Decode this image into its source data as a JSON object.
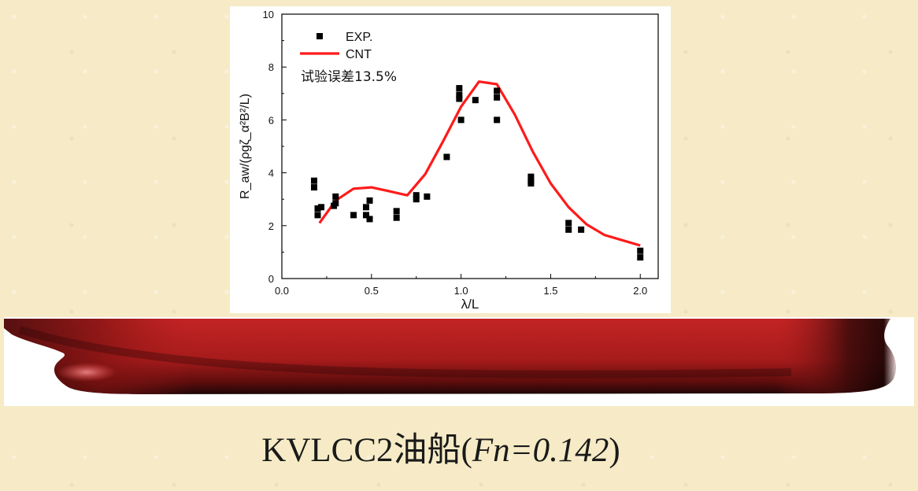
{
  "chart_data": {
    "type": "scatter",
    "title": "",
    "xlabel": "λ/L",
    "ylabel": "R_aw/(ρgζ_α²B²/L)",
    "xlim": [
      0.0,
      2.1
    ],
    "ylim": [
      0,
      10
    ],
    "xticks": [
      "0.0",
      "0.5",
      "1.0",
      "1.5",
      "2.0"
    ],
    "yticks": [
      "0",
      "2",
      "4",
      "6",
      "8",
      "10"
    ],
    "grid": false,
    "legend_position": "top-left",
    "annotation": "试验误差13.5%",
    "series": [
      {
        "name": "EXP.",
        "kind": "scatter",
        "color": "#000000",
        "marker": "square",
        "points": [
          [
            0.18,
            3.7
          ],
          [
            0.18,
            3.45
          ],
          [
            0.2,
            2.65
          ],
          [
            0.2,
            2.4
          ],
          [
            0.22,
            2.7
          ],
          [
            0.29,
            2.75
          ],
          [
            0.3,
            2.85
          ],
          [
            0.3,
            3.1
          ],
          [
            0.4,
            2.4
          ],
          [
            0.47,
            2.7
          ],
          [
            0.47,
            2.4
          ],
          [
            0.49,
            2.95
          ],
          [
            0.49,
            2.25
          ],
          [
            0.64,
            2.55
          ],
          [
            0.64,
            2.3
          ],
          [
            0.75,
            3.15
          ],
          [
            0.75,
            3.0
          ],
          [
            0.81,
            3.1
          ],
          [
            0.92,
            4.6
          ],
          [
            0.99,
            7.2
          ],
          [
            0.99,
            6.95
          ],
          [
            0.99,
            6.8
          ],
          [
            1.0,
            6.0
          ],
          [
            1.08,
            6.75
          ],
          [
            1.2,
            7.1
          ],
          [
            1.2,
            6.85
          ],
          [
            1.2,
            6.0
          ],
          [
            1.39,
            3.85
          ],
          [
            1.39,
            3.7
          ],
          [
            1.39,
            3.6
          ],
          [
            1.6,
            2.1
          ],
          [
            1.6,
            1.85
          ],
          [
            1.67,
            1.85
          ],
          [
            2.0,
            1.05
          ],
          [
            2.0,
            0.8
          ]
        ]
      },
      {
        "name": "CNT",
        "kind": "line",
        "color": "#ff1a1a",
        "points": [
          [
            0.21,
            2.1
          ],
          [
            0.3,
            2.95
          ],
          [
            0.4,
            3.4
          ],
          [
            0.5,
            3.45
          ],
          [
            0.6,
            3.3
          ],
          [
            0.7,
            3.15
          ],
          [
            0.8,
            3.95
          ],
          [
            0.9,
            5.2
          ],
          [
            1.0,
            6.5
          ],
          [
            1.1,
            7.45
          ],
          [
            1.2,
            7.35
          ],
          [
            1.3,
            6.2
          ],
          [
            1.4,
            4.8
          ],
          [
            1.5,
            3.6
          ],
          [
            1.6,
            2.7
          ],
          [
            1.7,
            2.05
          ],
          [
            1.8,
            1.65
          ],
          [
            1.9,
            1.45
          ],
          [
            2.0,
            1.25
          ]
        ]
      }
    ]
  },
  "caption": {
    "main": "KVLCC2油船(",
    "italic": "Fn=0.142",
    "close": ")"
  },
  "colors": {
    "hull_red": "#b01c1c",
    "hull_dark": "#1c0606",
    "background": "#f6ebc6"
  }
}
